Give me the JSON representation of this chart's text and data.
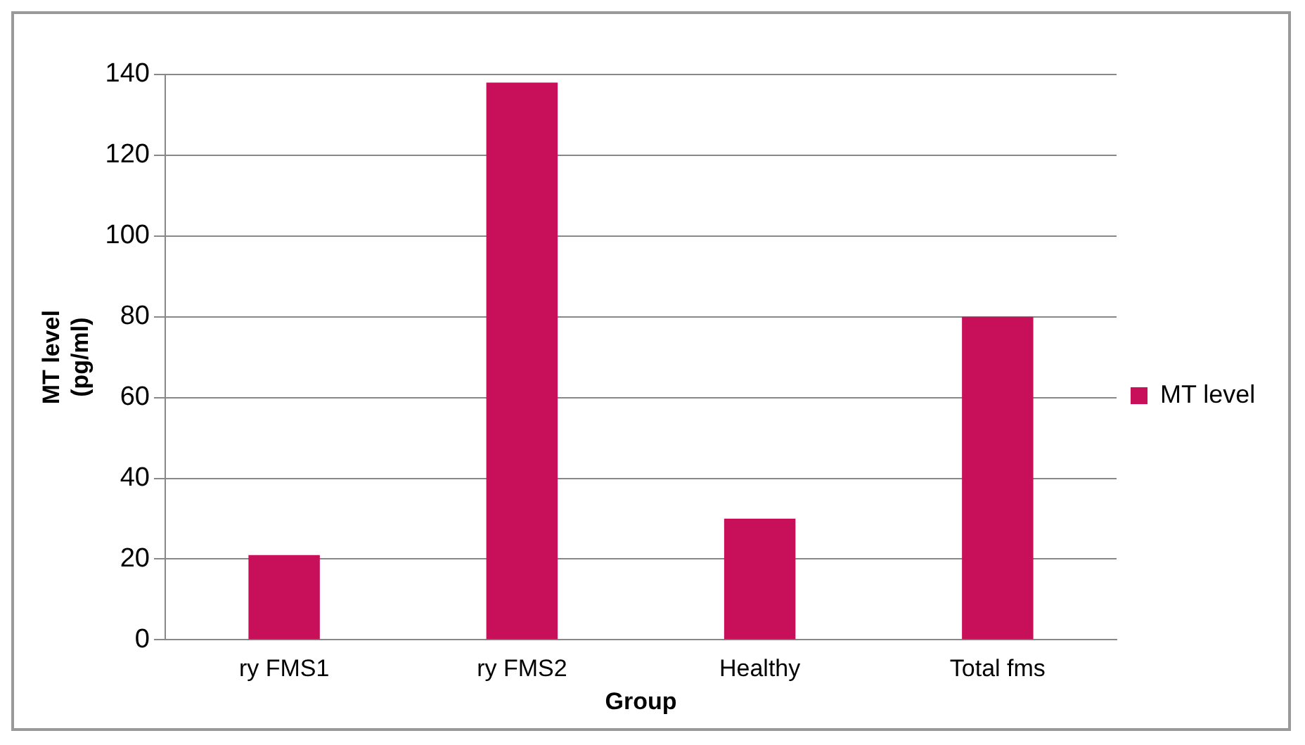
{
  "chart_data": {
    "type": "bar",
    "xlabel": "Group",
    "ylabel": "MT level (pg/ml)",
    "categories": [
      "ry FMS1",
      "ry FMS2",
      "Healthy",
      "Total fms"
    ],
    "series": [
      {
        "name": "MT level",
        "color": "#c8105a",
        "values": [
          21,
          138,
          30,
          80
        ]
      }
    ],
    "ylim": [
      0,
      140
    ],
    "yticks": [
      0,
      20,
      40,
      60,
      80,
      100,
      120,
      140
    ],
    "grid": "y",
    "legend": "right"
  }
}
